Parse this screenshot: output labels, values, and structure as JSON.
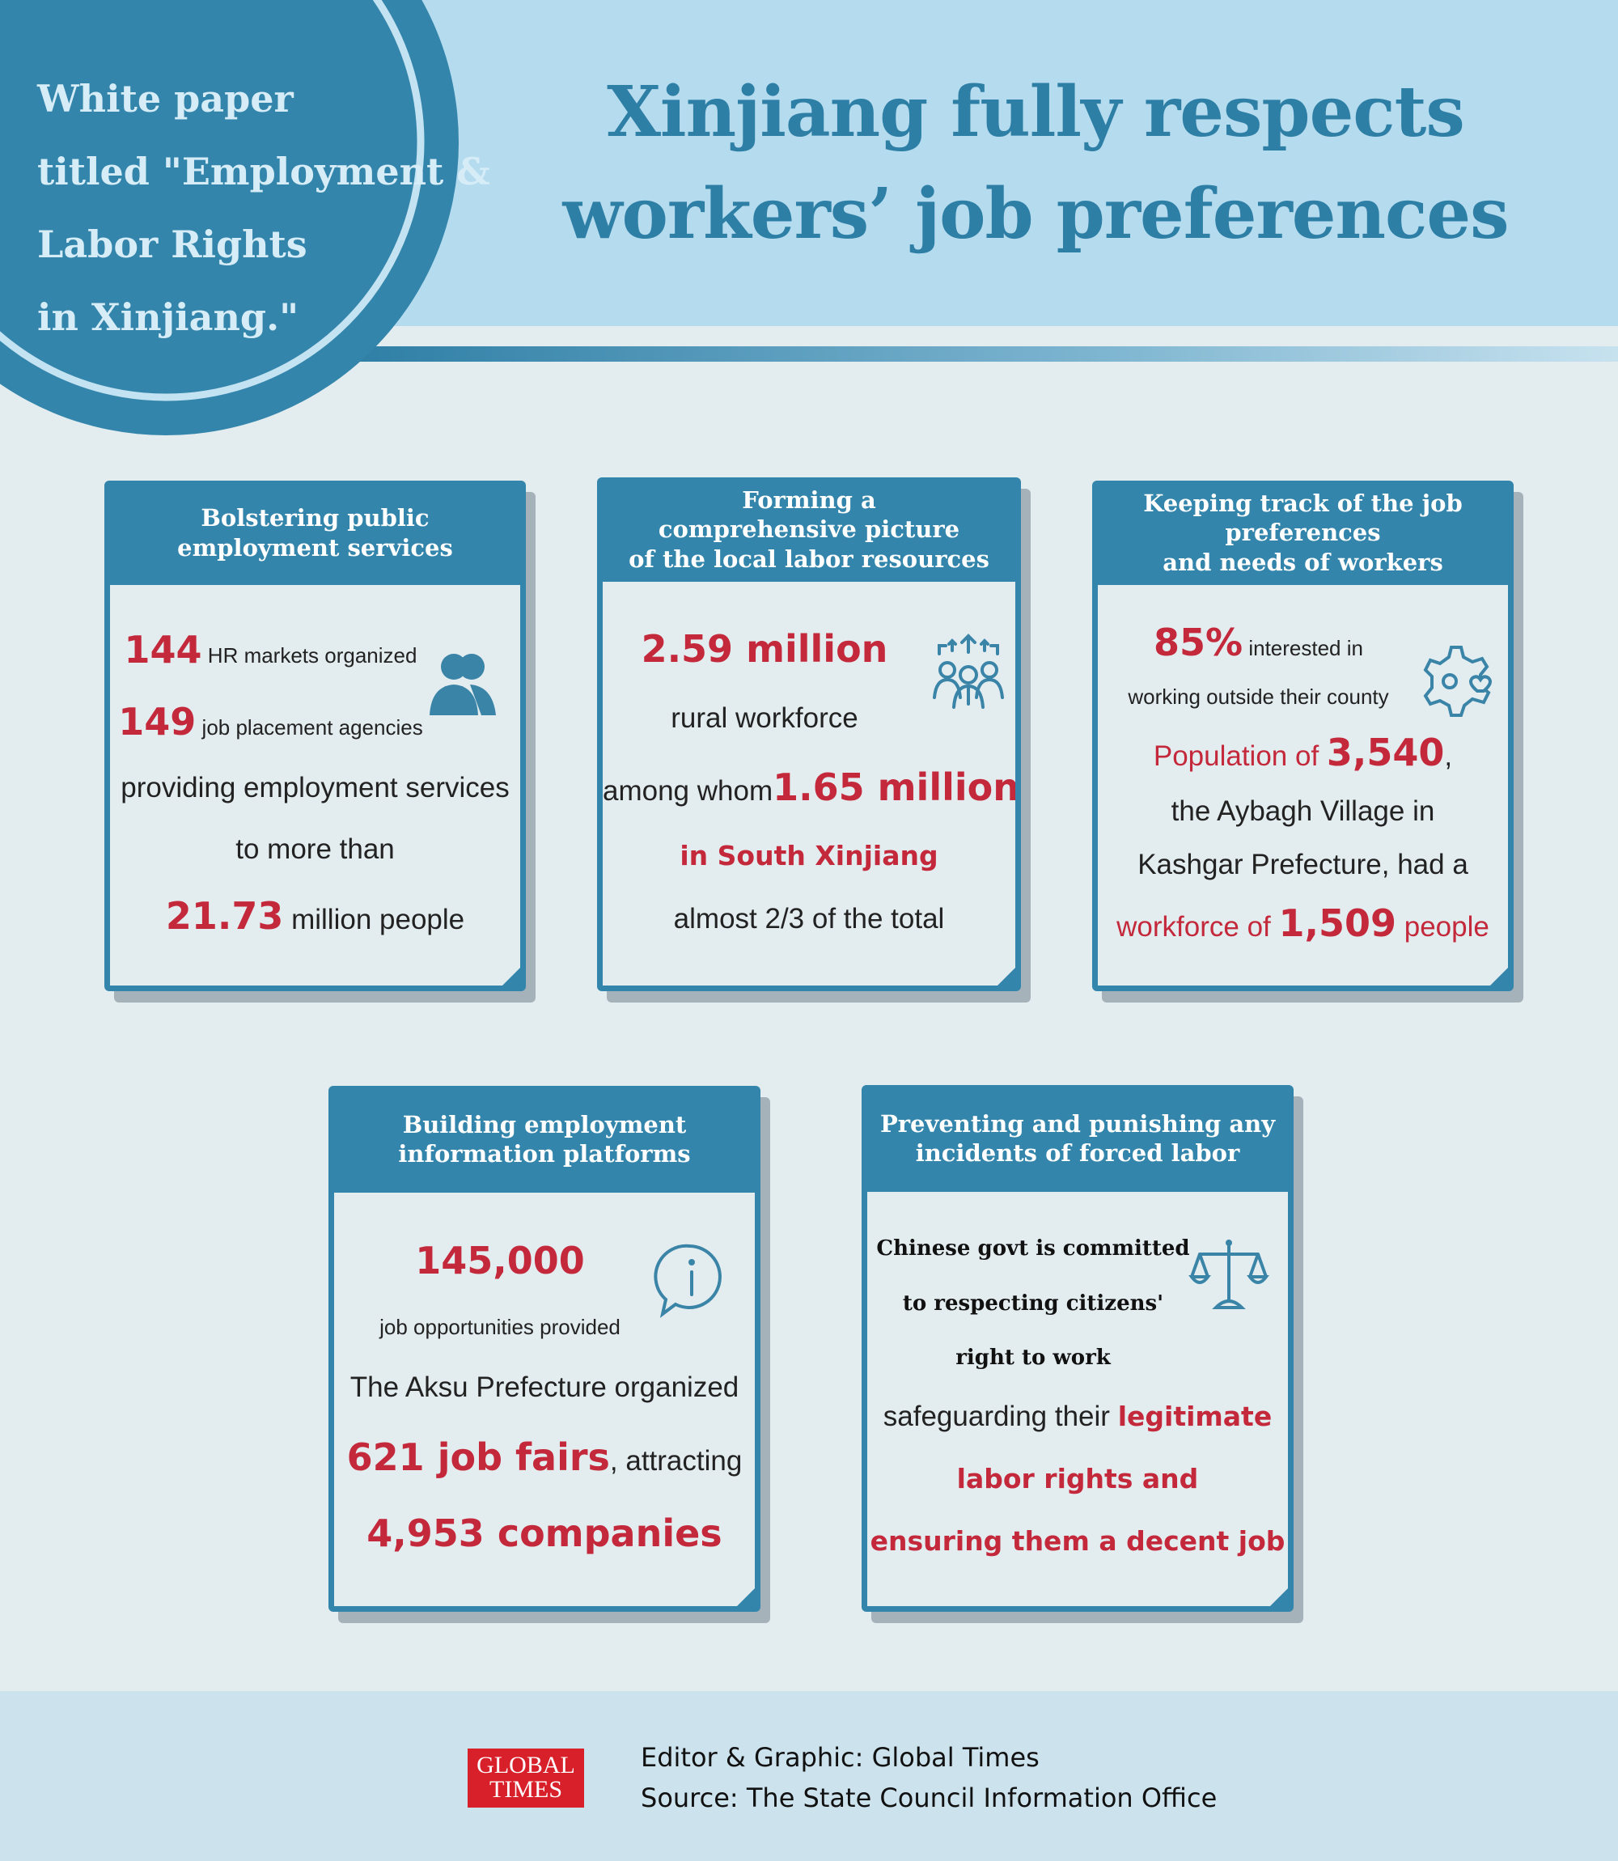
{
  "badge": {
    "lines": [
      "White paper",
      "titled \"Employment &",
      "Labor Rights",
      "in Xinjiang.\""
    ]
  },
  "title": {
    "lines": [
      "Xinjiang fully respects",
      "workers’ job preferences"
    ]
  },
  "cards": [
    {
      "title": [
        "Bolstering public",
        "employment services"
      ],
      "lines": [
        [
          "144",
          " HR markets organized"
        ],
        [
          "149",
          " job placement agencies"
        ],
        [
          "providing employment services"
        ],
        [
          "to more than"
        ],
        [
          "21.73",
          " million people"
        ]
      ]
    },
    {
      "title": [
        "Forming a",
        "comprehensive picture",
        "of the local labor resources"
      ],
      "lines": [
        [
          "2.59 million"
        ],
        [
          "rural workforce"
        ],
        [
          "among whom",
          "1.65 million"
        ],
        [
          "in South Xinjiang"
        ],
        [
          "almost 2/3 of the total"
        ]
      ]
    },
    {
      "title": [
        "Keeping track of the job",
        "preferences",
        "and needs of workers"
      ],
      "lines": [
        [
          "85%",
          " interested in"
        ],
        [
          "working outside their county"
        ],
        [
          "Population of ",
          "3,540",
          ","
        ],
        [
          "the Aybagh Village in"
        ],
        [
          "Kashgar Prefecture, had a"
        ],
        [
          "workforce of ",
          "1,509",
          " people"
        ]
      ]
    },
    {
      "title": [
        "Building employment",
        "information platforms"
      ],
      "lines": [
        [
          "145,000"
        ],
        [
          "job opportunities provided"
        ],
        [
          "The Aksu Prefecture organized"
        ],
        [
          "621 job fairs",
          ", attracting"
        ],
        [
          "4,953 companies"
        ]
      ]
    },
    {
      "title": [
        "Preventing and punishing any",
        "incidents of forced labor"
      ],
      "lines": [
        [
          "Chinese govt is committed"
        ],
        [
          "to respecting citizens'"
        ],
        [
          "right to work"
        ],
        [
          "safeguarding their ",
          "legitimate"
        ],
        [
          "labor rights and"
        ],
        [
          "ensuring them a decent job"
        ]
      ]
    }
  ],
  "footer": {
    "logo": [
      "GLOBAL",
      "TIMES"
    ],
    "credits": [
      "Editor & Graphic: Global Times",
      "Source: The State Council Information Office"
    ]
  }
}
